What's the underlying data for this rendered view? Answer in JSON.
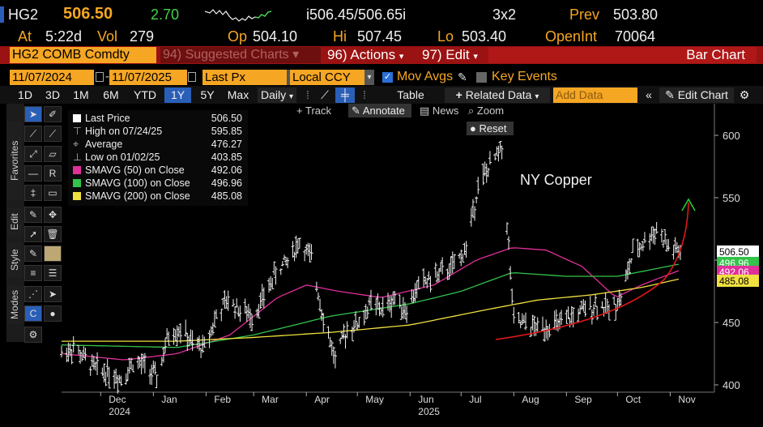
{
  "header": {
    "ticker": "HG2",
    "last": "506.50",
    "change": "2.70",
    "bid_ask": "i506.45/506.65i",
    "size": "3x2",
    "prev_label": "Prev",
    "prev": "503.80",
    "at_label": "At",
    "time": "5:22d",
    "vol_label": "Vol",
    "vol": "279",
    "op_label": "Op",
    "op": "504.10",
    "hi_label": "Hi",
    "hi": "507.45",
    "lo_label": "Lo",
    "lo": "503.40",
    "oi_label": "OpenInt",
    "oi": "70064"
  },
  "menubar": {
    "security": "HG2 COMB Comdty",
    "suggested": "94) Suggested Charts",
    "actions": "96) Actions",
    "edit": "97) Edit",
    "chart_type": "Bar Chart"
  },
  "controls": {
    "start_date": "11/07/2024",
    "end_date": "11/07/2025",
    "field": "Last Px",
    "currency": "Local CCY",
    "mov_avgs": "Mov Avgs",
    "key_events": "Key Events"
  },
  "toolbar": {
    "periods": [
      "1D",
      "3D",
      "1M",
      "6M",
      "YTD",
      "1Y",
      "5Y",
      "Max"
    ],
    "selected_period": "1Y",
    "frequency": "Daily",
    "table": "Table",
    "related": "Related Data",
    "add_data": "Add Data",
    "edit_chart": "Edit Chart"
  },
  "chart_toolbar": {
    "track": "Track",
    "annotate": "Annotate",
    "news": "News",
    "zoom": "Zoom",
    "reset": "Reset"
  },
  "side_tabs": {
    "favorites": "Favorites",
    "edit": "Edit",
    "style": "Style",
    "modes": "Modes"
  },
  "legend": [
    {
      "label": "Last Price",
      "value": "506.50",
      "color": "#ffffff"
    },
    {
      "label": "High on 07/24/25",
      "value": "595.85",
      "color": null
    },
    {
      "label": "Average",
      "value": "476.27",
      "color": null
    },
    {
      "label": "Low on 01/02/25",
      "value": "403.85",
      "color": null
    },
    {
      "label": "SMAVG (50)  on Close",
      "value": "492.06",
      "color": "#e0309a"
    },
    {
      "label": "SMAVG (100)  on Close",
      "value": "496.96",
      "color": "#33c24a"
    },
    {
      "label": "SMAVG (200)  on Close",
      "value": "485.08",
      "color": "#f0e040"
    }
  ],
  "chart_data": {
    "type": "bar",
    "title": "NY Copper",
    "annotation": "NY Copper",
    "ylim": [
      398,
      625
    ],
    "yticks": [
      400,
      450,
      500,
      550,
      600
    ],
    "month_labels": [
      "Dec",
      "Jan",
      "Feb",
      "Mar",
      "Apr",
      "May",
      "Jun",
      "Jul",
      "Aug",
      "Sep",
      "Oct",
      "Nov"
    ],
    "year_labels": [
      {
        "text": "2024",
        "month": "Dec"
      },
      {
        "text": "2025",
        "month": "Jun"
      }
    ],
    "last_price": 506.5,
    "price_tags": [
      {
        "value": "506.50",
        "color": "#ffffff"
      },
      {
        "value": "496.96",
        "color": "#33c24a"
      },
      {
        "value": "492.06",
        "color": "#e0309a"
      },
      {
        "value": "485.08",
        "color": "#f0e040"
      }
    ],
    "series": [
      {
        "name": "Last Price",
        "type": "ohlc",
        "color": "#ffffff",
        "x": [
          "2024-11-08",
          "2024-11-15",
          "2024-11-22",
          "2024-11-29",
          "2024-12-06",
          "2024-12-13",
          "2024-12-20",
          "2024-12-27",
          "2025-01-03",
          "2025-01-10",
          "2025-01-17",
          "2025-01-24",
          "2025-01-31",
          "2025-02-07",
          "2025-02-14",
          "2025-02-21",
          "2025-02-28",
          "2025-03-07",
          "2025-03-14",
          "2025-03-21",
          "2025-03-28",
          "2025-04-04",
          "2025-04-11",
          "2025-04-18",
          "2025-04-25",
          "2025-05-02",
          "2025-05-09",
          "2025-05-16",
          "2025-05-23",
          "2025-05-30",
          "2025-06-06",
          "2025-06-13",
          "2025-06-20",
          "2025-06-27",
          "2025-07-04",
          "2025-07-11",
          "2025-07-18",
          "2025-07-25",
          "2025-08-01",
          "2025-08-08",
          "2025-08-15",
          "2025-08-22",
          "2025-08-29",
          "2025-09-05",
          "2025-09-12",
          "2025-09-19",
          "2025-09-26",
          "2025-10-03",
          "2025-10-10",
          "2025-10-17",
          "2025-10-24",
          "2025-10-31",
          "2025-11-07"
        ],
        "values": [
          425,
          430,
          420,
          412,
          410,
          405,
          418,
          415,
          405,
          440,
          445,
          432,
          430,
          455,
          468,
          460,
          455,
          470,
          490,
          500,
          515,
          500,
          455,
          420,
          445,
          450,
          465,
          460,
          470,
          460,
          480,
          485,
          490,
          495,
          510,
          560,
          575,
          590,
          450,
          448,
          445,
          448,
          448,
          455,
          460,
          465,
          460,
          470,
          505,
          515,
          525,
          510,
          506.5
        ]
      },
      {
        "name": "SMAVG (50)",
        "color": "#e0309a",
        "x": [
          "2024-11-08",
          "2024-12-15",
          "2025-01-15",
          "2025-02-15",
          "2025-03-15",
          "2025-04-01",
          "2025-04-20",
          "2025-05-15",
          "2025-06-15",
          "2025-07-10",
          "2025-07-31",
          "2025-08-20",
          "2025-09-10",
          "2025-09-30",
          "2025-10-15",
          "2025-11-07"
        ],
        "values": [
          425,
          420,
          425,
          440,
          470,
          480,
          475,
          470,
          480,
          500,
          510,
          508,
          495,
          470,
          480,
          492.06
        ]
      },
      {
        "name": "SMAVG (100)",
        "color": "#33c24a",
        "x": [
          "2024-11-08",
          "2025-01-15",
          "2025-03-01",
          "2025-04-15",
          "2025-06-01",
          "2025-07-01",
          "2025-07-31",
          "2025-09-01",
          "2025-10-01",
          "2025-11-07"
        ],
        "values": [
          432,
          430,
          440,
          455,
          465,
          475,
          490,
          487,
          487,
          496.96
        ]
      },
      {
        "name": "SMAVG (200)",
        "color": "#f0e040",
        "x": [
          "2024-11-08",
          "2025-01-15",
          "2025-03-01",
          "2025-04-15",
          "2025-06-01",
          "2025-07-15",
          "2025-08-15",
          "2025-09-15",
          "2025-10-15",
          "2025-11-07"
        ],
        "values": [
          435,
          435,
          438,
          442,
          448,
          460,
          468,
          472,
          478,
          485.08
        ]
      }
    ]
  }
}
